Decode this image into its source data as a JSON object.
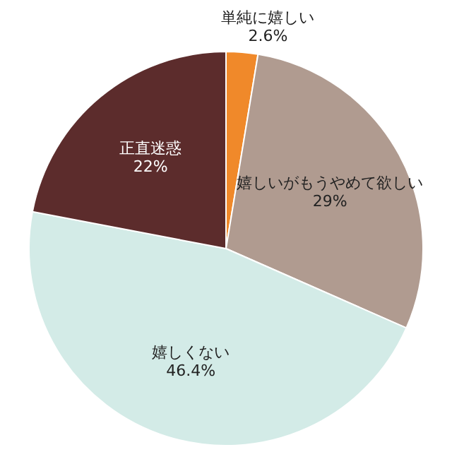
{
  "chart_data": {
    "type": "pie",
    "categories": [
      "単純に嬉しい",
      "嬉しいがもうやめて欲しい",
      "嬉しくない",
      "正直迷惑"
    ],
    "values": [
      2.6,
      29,
      46.4,
      22
    ],
    "colors": [
      "#f0892a",
      "#b09b90",
      "#d3ebe7",
      "#5c2c2c"
    ],
    "value_labels": [
      "2.6%",
      "29%",
      "46.4%",
      "22%"
    ],
    "legend": false
  }
}
